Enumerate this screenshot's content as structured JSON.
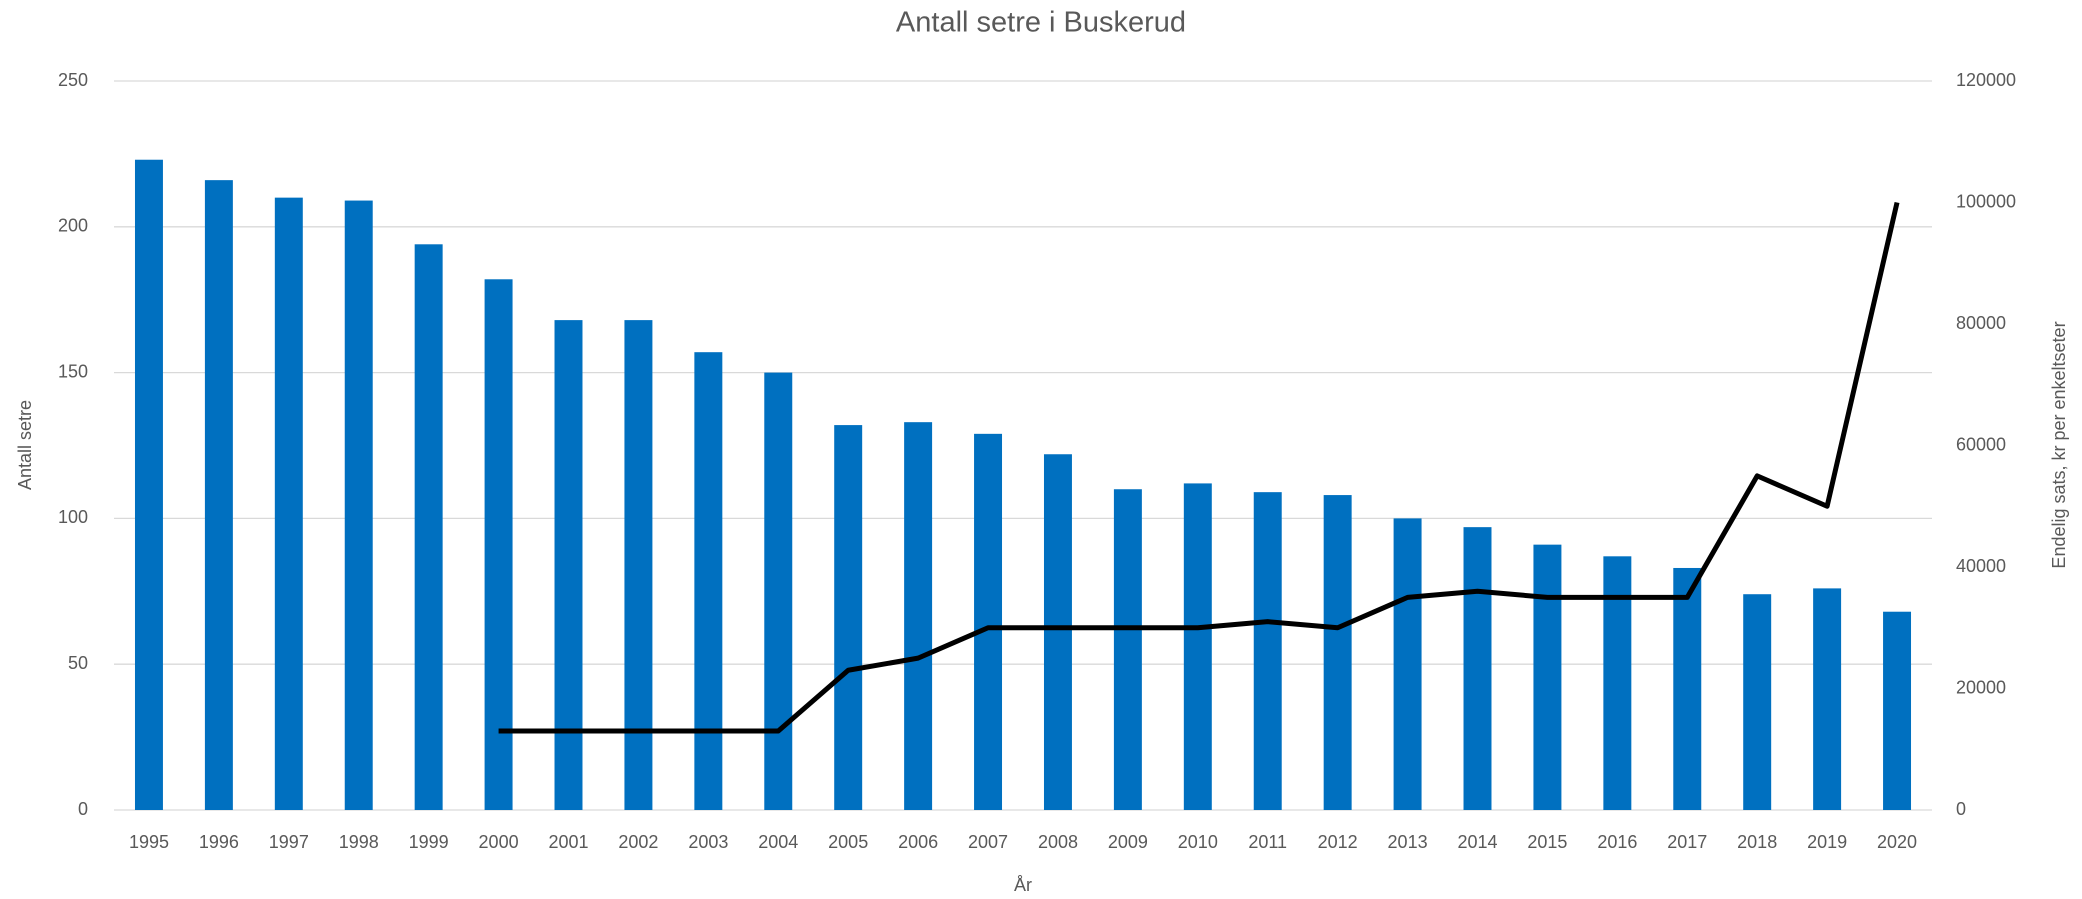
{
  "chart_data": {
    "type": "bar",
    "title": "Antall setre i Buskerud",
    "x_label": "År",
    "y_label": "Antall setre",
    "y2_label": "Endelig sats, kr per enkeltseter",
    "categories": [
      "1995",
      "1996",
      "1997",
      "1998",
      "1999",
      "2000",
      "2001",
      "2002",
      "2003",
      "2004",
      "2005",
      "2006",
      "2007",
      "2008",
      "2009",
      "2010",
      "2011",
      "2012",
      "2013",
      "2014",
      "2015",
      "2016",
      "2017",
      "2018",
      "2019",
      "2020"
    ],
    "series": [
      {
        "type": "bar",
        "color": "#0070c0",
        "values": [
          223,
          216,
          210,
          209,
          194,
          182,
          168,
          168,
          157,
          150,
          132,
          133,
          129,
          122,
          110,
          112,
          109,
          108,
          100,
          97,
          91,
          87,
          83,
          74,
          76,
          68
        ]
      },
      {
        "type": "line",
        "axis": "y2",
        "color": "#000000",
        "values": [
          null,
          null,
          null,
          null,
          null,
          13000,
          13000,
          13000,
          13000,
          13000,
          23000,
          25000,
          30000,
          30000,
          30000,
          30000,
          31000,
          30000,
          35000,
          36000,
          35000,
          35000,
          35000,
          55000,
          50000,
          100000
        ]
      }
    ],
    "ylim": [
      0,
      250
    ],
    "yticks": [
      0,
      50,
      100,
      150,
      200,
      250
    ],
    "y2lim": [
      0,
      120000
    ],
    "y2ticks": [
      0,
      20000,
      40000,
      60000,
      80000,
      100000,
      120000
    ],
    "grid": true
  }
}
